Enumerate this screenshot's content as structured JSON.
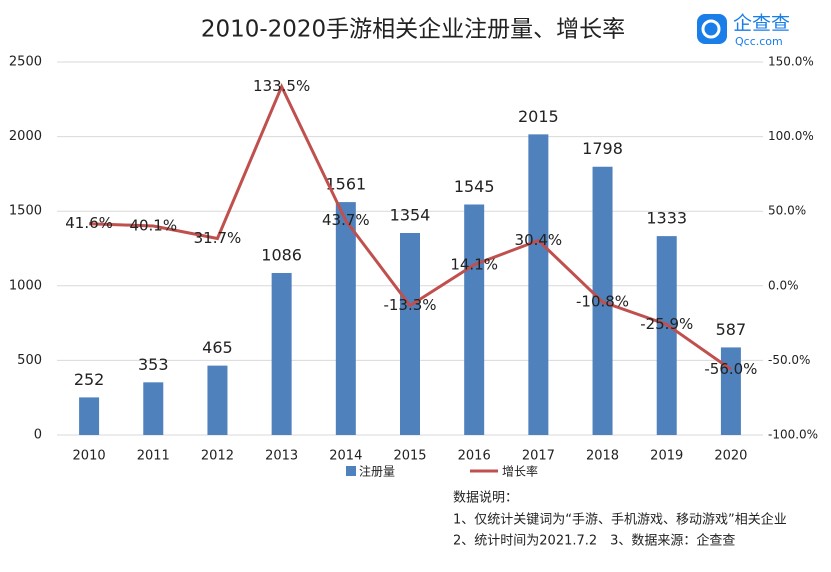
{
  "chart_data": {
    "type": "bar",
    "title": "2010-2020手游相关企业注册量、增长率",
    "categories": [
      "2010",
      "2011",
      "2012",
      "2013",
      "2014",
      "2015",
      "2016",
      "2017",
      "2018",
      "2019",
      "2020"
    ],
    "series": [
      {
        "name": "注册量",
        "type": "bar",
        "color": "#4f81bd",
        "values": [
          252,
          353,
          465,
          1086,
          1561,
          1354,
          1545,
          2015,
          1798,
          1333,
          587
        ]
      },
      {
        "name": "增长率",
        "type": "line",
        "axis": "y2",
        "color": "#c0504d",
        "values": [
          41.6,
          40.1,
          31.7,
          133.5,
          43.7,
          -13.3,
          14.1,
          30.4,
          -10.8,
          -25.9,
          -56.0
        ],
        "value_labels": [
          "41.6%",
          "40.1%",
          "31.7%",
          "133.5%",
          "43.7%",
          "-13.3%",
          "14.1%",
          "30.4%",
          "-10.8%",
          "-25.9%",
          "-56.0%"
        ]
      }
    ],
    "ylim": [
      0,
      2500
    ],
    "yticks": [
      0,
      500,
      1000,
      1500,
      2000,
      2500
    ],
    "y2lim": [
      -100,
      150
    ],
    "y2ticks": [
      {
        "value": -100,
        "label": "-100.0%"
      },
      {
        "value": -50,
        "label": "-50.0%"
      },
      {
        "value": 0,
        "label": "0.0%"
      },
      {
        "value": 50,
        "label": "50.0%"
      },
      {
        "value": 100,
        "label": "100.0%"
      },
      {
        "value": 150,
        "label": "150.0%"
      }
    ],
    "grid": true,
    "legend": "bottom",
    "notes": [
      "数据说明：",
      "1、仅统计关键词为“手游、手机游戏、移动游戏”相关企业",
      "2、统计时间为2021.7.2　3、数据来源：企查查"
    ]
  },
  "logo": {
    "name": "企查查",
    "url": "Qcc.com"
  }
}
